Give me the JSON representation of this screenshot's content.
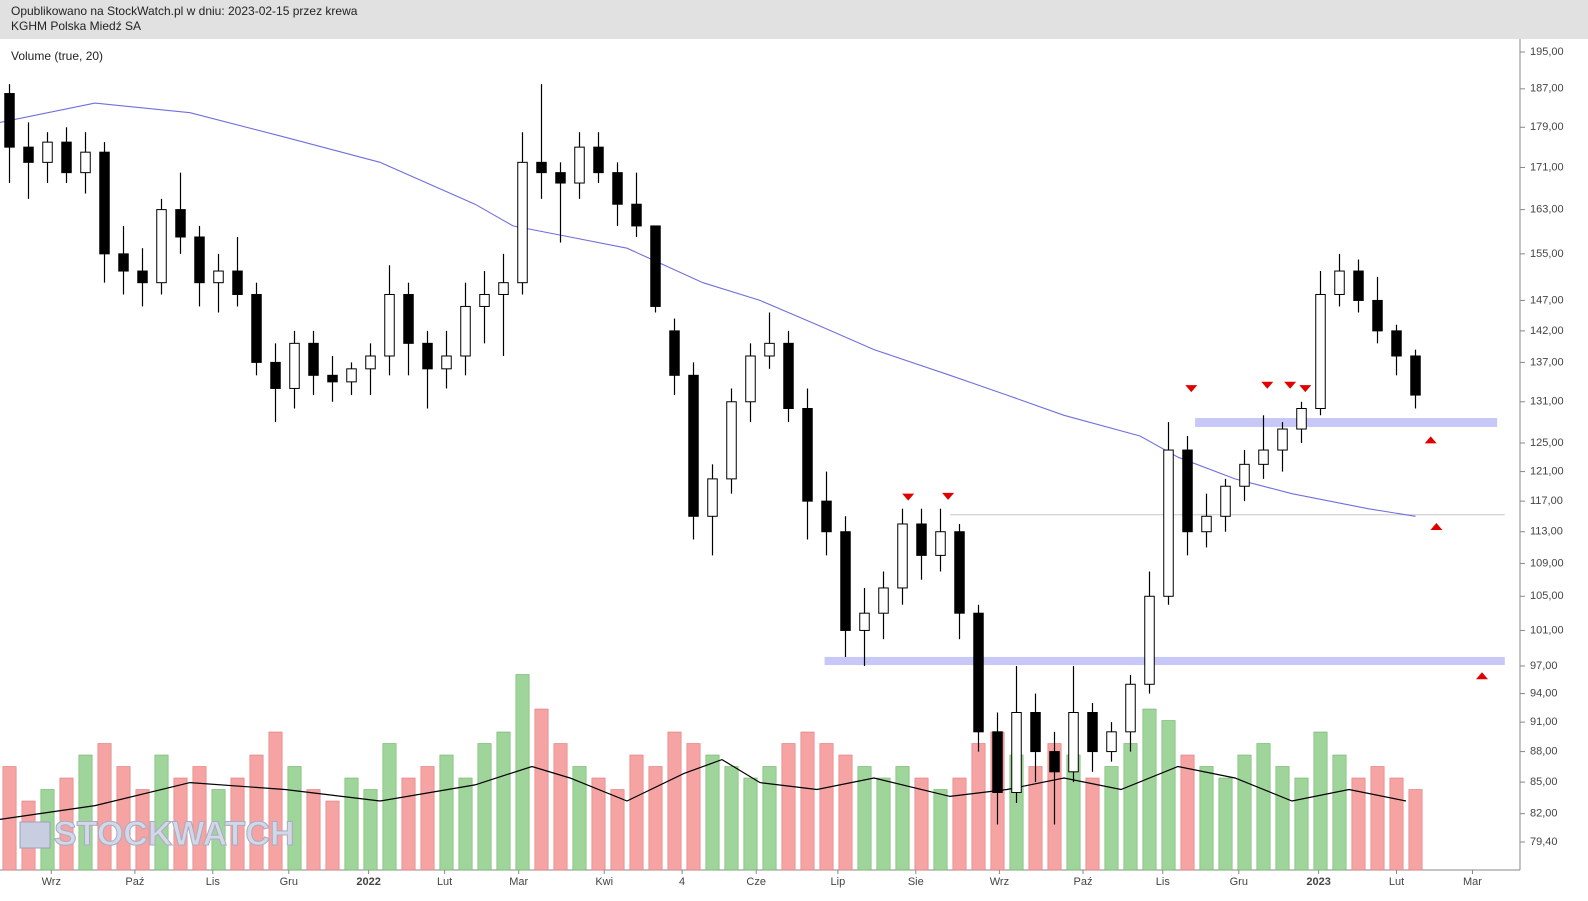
{
  "header": {
    "line1": "Opublikowano na StockWatch.pl w dniu: 2023-02-15 przez krewa",
    "line2": "KGHM Polska Miedź SA"
  },
  "chart_data": {
    "type": "candlestick",
    "indicator_label": "Volume (true, 20)",
    "watermark": "STOCKWATCH",
    "log_scale": true,
    "ylim": [
      79.4,
      195
    ],
    "yticks": [
      {
        "value": 195,
        "label": "195,00"
      },
      {
        "value": 187,
        "label": "187,00"
      },
      {
        "value": 179,
        "label": "179,00"
      },
      {
        "value": 171,
        "label": "171,00"
      },
      {
        "value": 163,
        "label": "163,00"
      },
      {
        "value": 155,
        "label": "155,00"
      },
      {
        "value": 147,
        "label": "147,00"
      },
      {
        "value": 142,
        "label": "142,00"
      },
      {
        "value": 137,
        "label": "137,00"
      },
      {
        "value": 131,
        "label": "131,00"
      },
      {
        "value": 125,
        "label": "125,00"
      },
      {
        "value": 121,
        "label": "121,00"
      },
      {
        "value": 117,
        "label": "117,00"
      },
      {
        "value": 113,
        "label": "113,00"
      },
      {
        "value": 109,
        "label": "109,00"
      },
      {
        "value": 105,
        "label": "105,00"
      },
      {
        "value": 101,
        "label": "101,00"
      },
      {
        "value": 97,
        "label": "97,00"
      },
      {
        "value": 94,
        "label": "94,00"
      },
      {
        "value": 91,
        "label": "91,00"
      },
      {
        "value": 88,
        "label": "88,00"
      },
      {
        "value": 85,
        "label": "85,00"
      },
      {
        "value": 82,
        "label": "82,00"
      },
      {
        "value": 79.4,
        "label": "79,40"
      }
    ],
    "xlim": [
      0,
      80
    ],
    "xticks": [
      {
        "value": 2.7,
        "label": "Wrz"
      },
      {
        "value": 7.1,
        "label": "Paź"
      },
      {
        "value": 11.2,
        "label": "Lis"
      },
      {
        "value": 15.2,
        "label": "Gru"
      },
      {
        "value": 19.4,
        "label": "2022"
      },
      {
        "value": 23.4,
        "label": "Lut"
      },
      {
        "value": 27.3,
        "label": "Mar"
      },
      {
        "value": 31.8,
        "label": "Kwi"
      },
      {
        "value": 35.9,
        "label": "4"
      },
      {
        "value": 39.8,
        "label": "Cze"
      },
      {
        "value": 44.1,
        "label": "Lip"
      },
      {
        "value": 48.2,
        "label": "Sie"
      },
      {
        "value": 52.6,
        "label": "Wrz"
      },
      {
        "value": 57.0,
        "label": "Paź"
      },
      {
        "value": 61.2,
        "label": "Lis"
      },
      {
        "value": 65.2,
        "label": "Gru"
      },
      {
        "value": 69.4,
        "label": "2023"
      },
      {
        "value": 73.5,
        "label": "Lut"
      },
      {
        "value": 77.5,
        "label": "Mar"
      }
    ],
    "open": [
      186,
      175,
      172,
      176,
      170,
      174,
      155,
      152,
      150,
      163,
      158,
      150,
      152,
      148,
      137,
      133,
      140,
      135,
      134,
      136,
      138,
      148,
      140,
      136,
      138,
      146,
      148,
      150,
      172,
      170,
      168,
      175,
      170,
      164,
      160,
      142,
      135,
      115,
      120,
      131,
      138,
      140,
      130,
      117,
      113,
      101,
      103,
      106,
      114,
      110,
      113,
      103,
      90,
      84,
      92,
      88,
      86,
      92,
      88,
      90,
      95,
      105,
      124,
      113,
      115,
      119,
      122,
      124,
      127,
      130,
      148,
      152,
      147,
      142,
      138
    ],
    "high": [
      188,
      180,
      178,
      179,
      178,
      176,
      160,
      156,
      165,
      170,
      160,
      155,
      158,
      150,
      140,
      142,
      142,
      138,
      137,
      140,
      153,
      150,
      142,
      142,
      150,
      152,
      155,
      178,
      188,
      172,
      178,
      178,
      172,
      170,
      160,
      144,
      137,
      122,
      133,
      140,
      145,
      142,
      133,
      121,
      115,
      106,
      108,
      116,
      116,
      116,
      114,
      104,
      92,
      97,
      94,
      90,
      97,
      93,
      91,
      96,
      108,
      128,
      126,
      118,
      120,
      124,
      129,
      128,
      131,
      152,
      155,
      154,
      151,
      143,
      139
    ],
    "low": [
      168,
      165,
      168,
      168,
      166,
      150,
      148,
      146,
      148,
      155,
      146,
      145,
      146,
      135,
      128,
      130,
      132,
      131,
      132,
      132,
      135,
      135,
      130,
      133,
      135,
      140,
      138,
      148,
      165,
      157,
      165,
      168,
      160,
      158,
      145,
      132,
      112,
      110,
      118,
      128,
      136,
      128,
      112,
      110,
      98,
      97,
      100,
      104,
      107,
      108,
      100,
      88,
      81,
      83,
      85,
      81,
      85,
      86,
      87,
      88,
      94,
      104,
      110,
      111,
      113,
      117,
      120,
      121,
      125,
      129,
      146,
      145,
      140,
      135,
      130
    ],
    "close": [
      175,
      172,
      176,
      170,
      174,
      155,
      152,
      150,
      163,
      158,
      150,
      152,
      148,
      137,
      133,
      140,
      135,
      134,
      136,
      138,
      148,
      140,
      136,
      138,
      146,
      148,
      150,
      172,
      170,
      168,
      175,
      170,
      164,
      160,
      146,
      135,
      115,
      120,
      131,
      138,
      140,
      130,
      117,
      113,
      101,
      103,
      106,
      114,
      110,
      113,
      103,
      90,
      84,
      92,
      88,
      86,
      92,
      88,
      90,
      95,
      105,
      124,
      113,
      115,
      119,
      122,
      124,
      127,
      130,
      148,
      152,
      147,
      142,
      138,
      132
    ],
    "up_color": "#ffffff",
    "down_color": "#000000",
    "volume": [
      45,
      30,
      35,
      40,
      50,
      55,
      45,
      35,
      50,
      40,
      45,
      35,
      40,
      50,
      60,
      45,
      35,
      30,
      40,
      35,
      55,
      40,
      45,
      50,
      40,
      55,
      60,
      85,
      70,
      55,
      45,
      40,
      35,
      50,
      45,
      60,
      55,
      50,
      45,
      40,
      45,
      55,
      60,
      55,
      50,
      45,
      40,
      45,
      40,
      35,
      40,
      55,
      60,
      50,
      45,
      55,
      50,
      40,
      45,
      55,
      70,
      65,
      50,
      45,
      40,
      50,
      55,
      45,
      40,
      60,
      50,
      40,
      45,
      40,
      35
    ],
    "vlim": [
      0,
      100
    ],
    "volume_up_color": "#9fd49a",
    "volume_down_color": "#f5a3a3",
    "volume_ma": {
      "color": "#000000",
      "x": [
        0,
        5,
        10,
        15,
        20,
        25,
        28,
        30,
        33,
        36,
        38,
        40,
        43,
        46,
        50,
        53,
        56,
        59,
        62,
        65,
        68,
        71,
        74
      ],
      "values": [
        22,
        28,
        38,
        35,
        30,
        37,
        45,
        40,
        30,
        42,
        48,
        38,
        35,
        40,
        32,
        35,
        40,
        35,
        45,
        40,
        30,
        35,
        30
      ]
    },
    "price_ma": {
      "color": "#7070dd",
      "x": [
        0,
        5,
        10,
        15,
        20,
        25,
        27,
        30,
        33,
        37,
        40,
        43,
        46,
        50,
        53,
        56,
        60,
        62,
        65,
        68,
        72,
        74.5
      ],
      "values": [
        180,
        184,
        182,
        177,
        172,
        164,
        160,
        158,
        156,
        150,
        147,
        143,
        139,
        135,
        132,
        129,
        126,
        123,
        120,
        118,
        116,
        115
      ]
    },
    "zones": [
      {
        "from": 62.9,
        "to": 78.8,
        "low": 127.3,
        "high": 128.6
      },
      {
        "from": 43.4,
        "to": 79.2,
        "low": 97.1,
        "high": 98.0
      }
    ],
    "zone_color": "#c8c8f8",
    "levels": [
      {
        "from": 50,
        "to": 79.2,
        "value": 115.2
      }
    ],
    "markers": [
      {
        "x": 47.8,
        "price": 117.2,
        "dir": "down"
      },
      {
        "x": 49.9,
        "price": 117.3,
        "dir": "down"
      },
      {
        "x": 62.7,
        "price": 132.6,
        "dir": "down"
      },
      {
        "x": 66.7,
        "price": 133.1,
        "dir": "down"
      },
      {
        "x": 67.9,
        "price": 133.1,
        "dir": "down"
      },
      {
        "x": 68.7,
        "price": 132.6,
        "dir": "down"
      },
      {
        "x": 75.3,
        "price": 125.8,
        "dir": "up"
      },
      {
        "x": 75.6,
        "price": 114.0,
        "dir": "up"
      },
      {
        "x": 78.0,
        "price": 96.2,
        "dir": "up"
      }
    ],
    "marker_color": "#e00000"
  }
}
